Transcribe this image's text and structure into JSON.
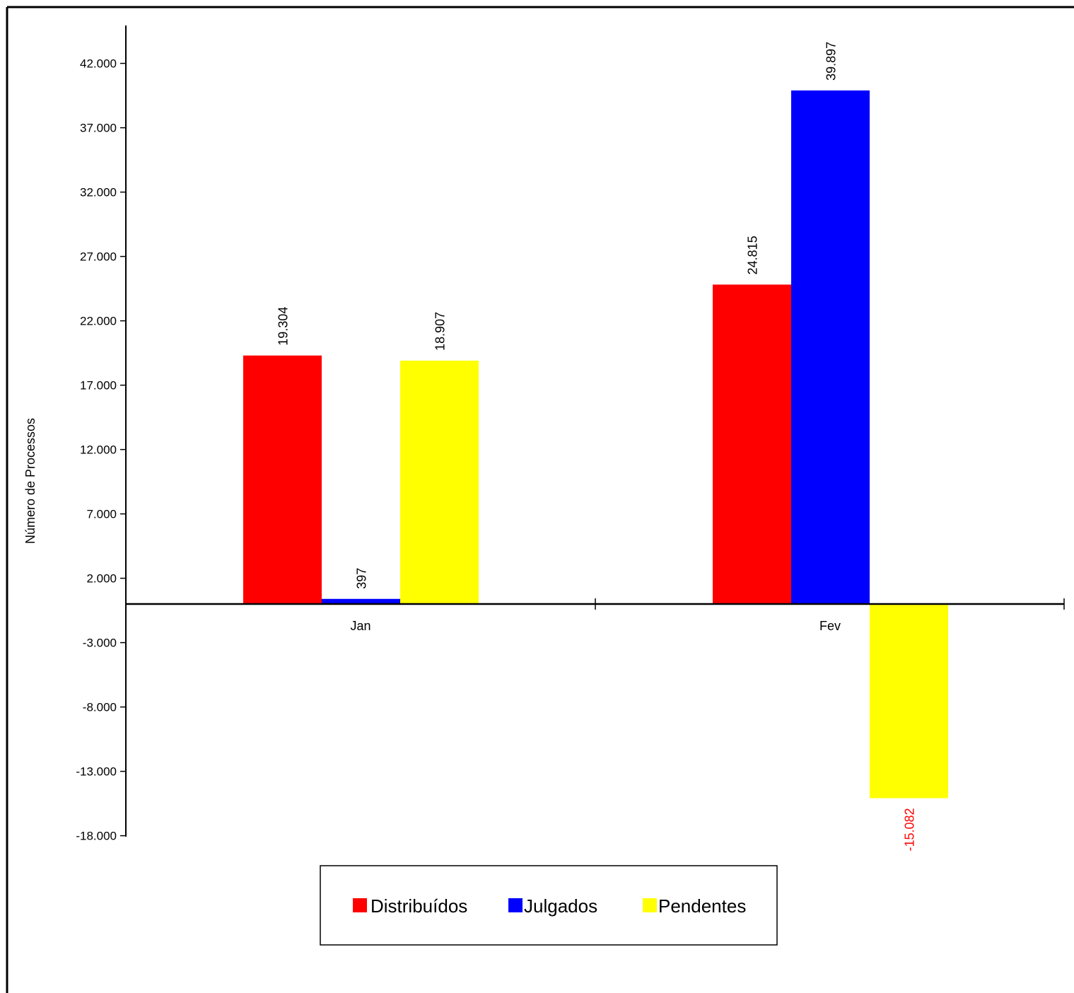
{
  "chart_data": {
    "type": "bar",
    "title": "",
    "xlabel": "",
    "ylabel": "Número de Processos",
    "categories": [
      "Jan",
      "Fev"
    ],
    "series": [
      {
        "name": "Distribuídos",
        "color": "#ff0000",
        "values": [
          19304,
          24815
        ],
        "labels": [
          "19.304",
          "24.815"
        ]
      },
      {
        "name": "Julgados",
        "color": "#0000ff",
        "values": [
          397,
          39897
        ],
        "labels": [
          "397",
          "39.897"
        ]
      },
      {
        "name": "Pendentes",
        "color": "#ffff00",
        "values": [
          18907,
          -15082
        ],
        "labels": [
          "18.907",
          "-15.082"
        ]
      }
    ],
    "negative_label_color": "#ff0000",
    "yticks": [
      42000,
      37000,
      32000,
      27000,
      22000,
      17000,
      12000,
      7000,
      2000,
      -3000,
      -8000,
      -13000,
      -18000
    ],
    "ytick_labels": [
      "42.000",
      "37.000",
      "32.000",
      "27.000",
      "22.000",
      "17.000",
      "12.000",
      "7.000",
      "2.000",
      "-3.000",
      "-8.000",
      "-13.000",
      "-18.000"
    ],
    "ylim": [
      -18000,
      42000
    ],
    "grid": false,
    "legend_position": "bottom-center"
  }
}
